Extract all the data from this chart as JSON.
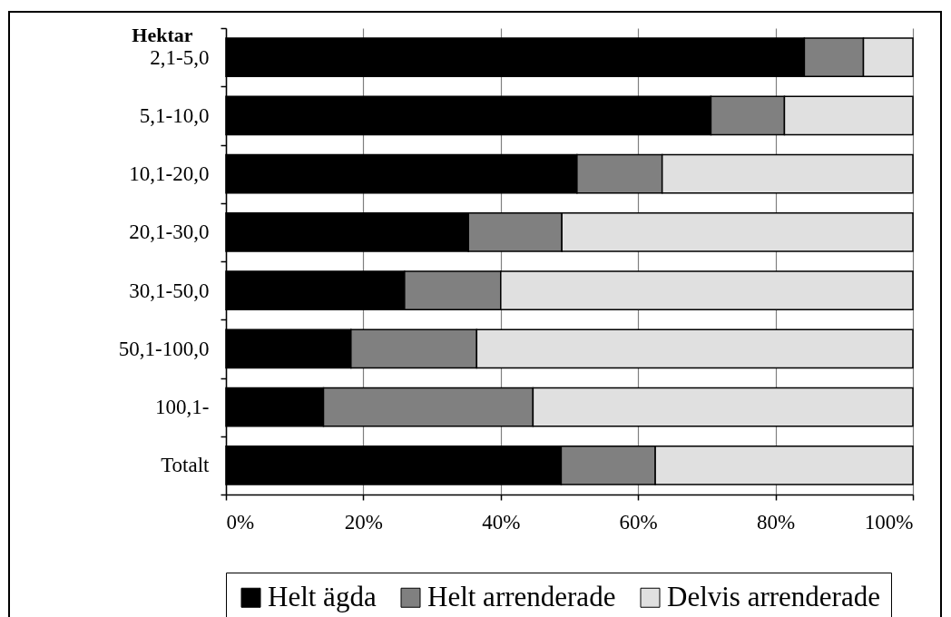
{
  "chart_data": {
    "type": "bar",
    "orientation": "horizontal",
    "stacked": true,
    "ylabel": "Hektar",
    "categories": [
      "2,1-5,0",
      "5,1-10,0",
      "10,1-20,0",
      "20,1-30,0",
      "30,1-50,0",
      "50,1-100,0",
      "100,1-",
      "Totalt"
    ],
    "series": [
      {
        "name": "Helt ägda",
        "color": "#000000",
        "values": [
          84.2,
          70.6,
          51.1,
          35.3,
          26.0,
          18.2,
          14.2,
          48.8
        ]
      },
      {
        "name": "Helt arrenderade",
        "color": "#808080",
        "values": [
          8.6,
          10.7,
          12.4,
          13.6,
          14.0,
          18.3,
          30.5,
          13.7
        ]
      },
      {
        "name": "Delvis arrenderade",
        "color": "#e0e0e0",
        "values": [
          7.2,
          18.7,
          36.5,
          51.1,
          60.0,
          63.5,
          55.3,
          37.5
        ]
      }
    ],
    "xlim": [
      0,
      100
    ],
    "xticks": [
      {
        "value": 0,
        "label": "0%"
      },
      {
        "value": 20,
        "label": "20%"
      },
      {
        "value": 40,
        "label": "40%"
      },
      {
        "value": 60,
        "label": "60%"
      },
      {
        "value": 80,
        "label": "80%"
      },
      {
        "value": 100,
        "label": "100%"
      }
    ],
    "grid": "x",
    "legend": "bottom"
  }
}
